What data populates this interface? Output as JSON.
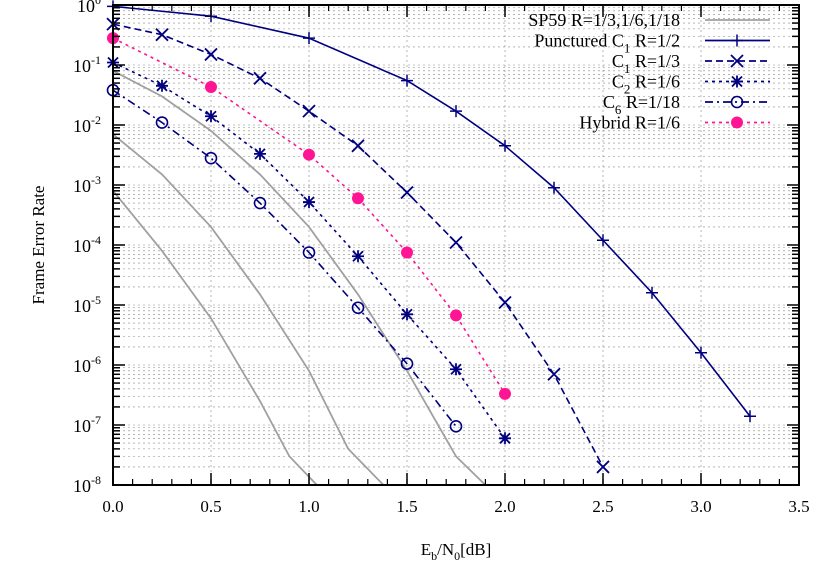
{
  "chart_data": {
    "type": "line",
    "title": "",
    "xlabel": "Eb/N0[dB]",
    "ylabel": "Frame Error Rate",
    "xlim": [
      0.0,
      3.5
    ],
    "ylim": [
      1e-08,
      1
    ],
    "yscale": "log",
    "grid": true,
    "legend_position": "top-right",
    "x_ticks": [
      "0.0",
      "0.5",
      "1.0",
      "1.5",
      "2.0",
      "2.5",
      "3.0",
      "3.5"
    ],
    "y_ticks": [
      "10^0",
      "10^-1",
      "10^-2",
      "10^-3",
      "10^-4",
      "10^-5",
      "10^-6",
      "10^-7",
      "10^-8"
    ],
    "series": [
      {
        "name": "SP59 R=1/3,1/6,1/18",
        "color": "#a0a0a0",
        "style": "solid",
        "marker": "none",
        "curves": [
          {
            "x": [
              0.0,
              0.25,
              0.5,
              0.75,
              1.0,
              1.25,
              1.5,
              1.75,
              1.9
            ],
            "y": [
              0.08,
              0.03,
              0.008,
              0.0015,
              0.0002,
              1.5e-05,
              8e-07,
              3e-08,
              1e-08
            ]
          },
          {
            "x": [
              0.0,
              0.25,
              0.5,
              0.75,
              1.0,
              1.2,
              1.38
            ],
            "y": [
              0.007,
              0.0015,
              0.0002,
              1.5e-05,
              8e-07,
              4e-08,
              1e-08
            ]
          },
          {
            "x": [
              0.0,
              0.25,
              0.5,
              0.75,
              0.9,
              1.04
            ],
            "y": [
              0.0008,
              8e-05,
              6e-06,
              2.5e-07,
              3e-08,
              1e-08
            ]
          }
        ]
      },
      {
        "name": "Punctured C1 R=1/2",
        "color": "#000080",
        "style": "solid",
        "marker": "plus",
        "x": [
          0.0,
          0.5,
          1.0,
          1.5,
          1.75,
          2.0,
          2.25,
          2.5,
          2.75,
          3.0,
          3.25
        ],
        "y": [
          0.95,
          0.65,
          0.28,
          0.055,
          0.017,
          0.0045,
          0.0009,
          0.00012,
          1.6e-05,
          1.6e-06,
          1.4e-07
        ]
      },
      {
        "name": "C1 R=1/3",
        "color": "#000080",
        "style": "dashed",
        "marker": "x",
        "x": [
          0.0,
          0.25,
          0.5,
          0.75,
          1.0,
          1.25,
          1.5,
          1.75,
          2.0,
          2.25,
          2.5
        ],
        "y": [
          0.48,
          0.32,
          0.15,
          0.06,
          0.017,
          0.0045,
          0.00075,
          0.00011,
          1.1e-05,
          7e-07,
          2e-08
        ]
      },
      {
        "name": "C2 R=1/6",
        "color": "#000080",
        "style": "dotted",
        "marker": "star",
        "x": [
          0.0,
          0.25,
          0.5,
          0.75,
          1.0,
          1.25,
          1.5,
          1.75,
          2.0
        ],
        "y": [
          0.11,
          0.045,
          0.014,
          0.0033,
          0.00052,
          6.5e-05,
          7e-06,
          8.5e-07,
          6e-08
        ]
      },
      {
        "name": "C6 R=1/18",
        "color": "#000080",
        "style": "dash-dot",
        "marker": "circle-open",
        "x": [
          0.0,
          0.25,
          0.5,
          0.75,
          1.0,
          1.25,
          1.5,
          1.75
        ],
        "y": [
          0.038,
          0.011,
          0.0028,
          0.0005,
          7.5e-05,
          9e-06,
          1.05e-06,
          9.5e-08
        ]
      },
      {
        "name": "Hybrid R=1/6",
        "color": "#ff1493",
        "style": "dotted",
        "marker": "circle-filled",
        "x": [
          0.0,
          0.5,
          1.0,
          1.25,
          1.5,
          1.75,
          2.0
        ],
        "y": [
          0.28,
          0.043,
          0.0032,
          0.0006,
          7.5e-05,
          6.7e-06,
          3.3e-07
        ]
      }
    ]
  },
  "axes": {
    "xlabel_main": "E",
    "xlabel_sub1": "b",
    "xlabel_mid": "/N",
    "xlabel_sub2": "0",
    "xlabel_end": "[dB]",
    "ylabel": "Frame Error Rate"
  },
  "legend": [
    {
      "pre": "SP59 R=1/3,1/6,1/18",
      "sub": "",
      "post": ""
    },
    {
      "pre": "Punctured C",
      "sub": "1",
      "post": " R=1/2"
    },
    {
      "pre": "C",
      "sub": "1",
      "post": " R=1/3"
    },
    {
      "pre": "C",
      "sub": "2",
      "post": " R=1/6"
    },
    {
      "pre": "C",
      "sub": "6",
      "post": " R=1/18"
    },
    {
      "pre": "Hybrid R=1/6",
      "sub": "",
      "post": ""
    }
  ]
}
